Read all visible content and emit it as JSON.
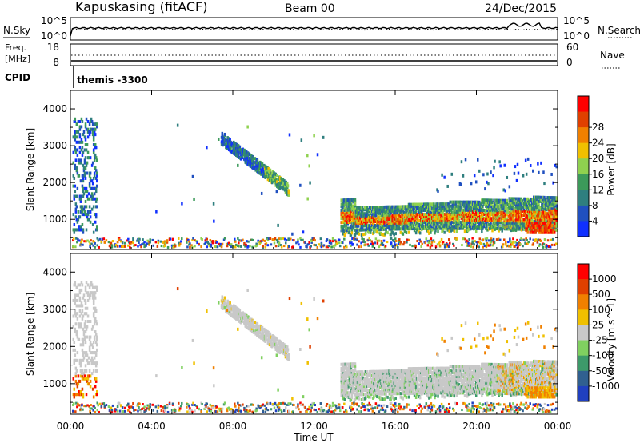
{
  "header": {
    "station": "Kapuskasing (fitACF)",
    "beam": "Beam 00",
    "date": "24/Dec/2015"
  },
  "top_panels": {
    "nsky_label": "N.Sky",
    "nsky_ticks": [
      "10^5",
      "10^0"
    ],
    "nsearch_label": "N.Search",
    "nsearch_ticks": [
      "10^5",
      "10^0"
    ],
    "freq_label_line1": "Freq.",
    "freq_label_line2": "[MHz]",
    "freq_ticks": [
      "18",
      "8"
    ],
    "nave_label": "Nave",
    "nave_ticks": [
      "60",
      "0"
    ],
    "cpid_label": "CPID",
    "cpid_value": "themis -3300"
  },
  "x_axis": {
    "title": "Time UT",
    "ticks": [
      "00:00",
      "04:00",
      "08:00",
      "12:00",
      "16:00",
      "20:00",
      "00:00"
    ]
  },
  "chart_data": [
    {
      "type": "heatmap",
      "name": "power",
      "xlabel": "Time UT",
      "ylabel": "Slant Range [km]",
      "yticks": [
        1000,
        2000,
        3000,
        4000
      ],
      "ylim": [
        180,
        4500
      ],
      "xlim_hours": [
        0,
        24
      ],
      "colorbar": {
        "title": "Power [dB]",
        "tick_labels": [
          "4",
          "8",
          "12",
          "16",
          "20",
          "24",
          "28"
        ],
        "colors": [
          "#1030ff",
          "#2050c0",
          "#2f7f7f",
          "#3c9a5a",
          "#8fd14f",
          "#f0c000",
          "#f08000",
          "#e04000",
          "#ff0000"
        ]
      },
      "regions": [
        {
          "label": "early near range",
          "t": [
            0.1,
            1.2
          ],
          "range_km": [
            600,
            3700
          ],
          "level": "low-mid"
        },
        {
          "label": "arc 07:30-10:30",
          "t": [
            7.4,
            10.7
          ],
          "range_km": [
            1700,
            3300
          ],
          "level": "mid"
        },
        {
          "label": "evening band",
          "t": [
            13.3,
            24.0
          ],
          "range_km": [
            500,
            1700
          ],
          "level": "high"
        },
        {
          "label": "ground clutter",
          "t": [
            0,
            24
          ],
          "range_km": [
            180,
            400
          ],
          "level": "mixed"
        }
      ]
    },
    {
      "type": "heatmap",
      "name": "velocity",
      "xlabel": "Time UT",
      "ylabel": "Slant Range [km]",
      "yticks": [
        1000,
        2000,
        3000,
        4000
      ],
      "ylim": [
        180,
        4500
      ],
      "xlim_hours": [
        0,
        24
      ],
      "colorbar": {
        "title": "Velocity [m s^-1]",
        "tick_labels": [
          "1000",
          "500",
          "100",
          "25",
          "-25",
          "-100",
          "-500",
          "-1000"
        ],
        "colors": [
          "#2040c0",
          "#306090",
          "#3d9a6a",
          "#80d060",
          "#c8c8c8",
          "#f0c000",
          "#f08000",
          "#e04000",
          "#ff0000"
        ]
      },
      "regions": [
        {
          "label": "early near range",
          "t": [
            0.1,
            1.2
          ],
          "range_km": [
            600,
            3200
          ],
          "velocity": "mixed"
        },
        {
          "label": "arc 07:30-10:30",
          "t": [
            7.4,
            10.7
          ],
          "range_km": [
            1700,
            3300
          ],
          "velocity": "ground scatter (grey)"
        },
        {
          "label": "evening band",
          "t": [
            13.3,
            24.0
          ],
          "range_km": [
            500,
            1700
          ],
          "velocity": "mostly grey, green/orange edges"
        },
        {
          "label": "ground clutter",
          "t": [
            0,
            24
          ],
          "range_km": [
            180,
            400
          ],
          "velocity": "mixed"
        }
      ]
    }
  ]
}
